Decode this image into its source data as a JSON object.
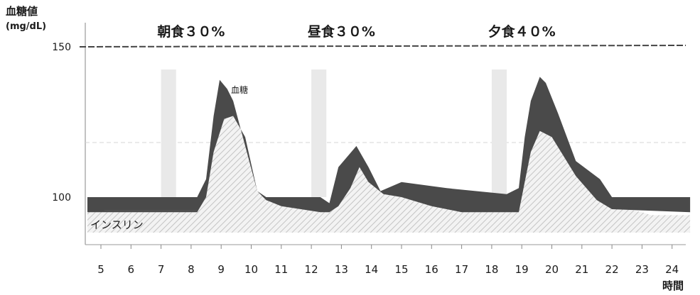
{
  "chart_data": {
    "type": "area",
    "ylabel": "血糖値",
    "yunit": "(mg/dL)",
    "xlabel": "時間",
    "x_ticks": [
      5,
      6,
      7,
      8,
      9,
      10,
      11,
      12,
      13,
      14,
      15,
      16,
      17,
      18,
      19,
      20,
      21,
      22,
      23,
      24
    ],
    "y_ticks": [
      100,
      150
    ],
    "xlim": [
      4.55,
      24.6
    ],
    "reference_line": 150,
    "meal_labels": [
      {
        "text": "朝食３０%",
        "x": 8.0
      },
      {
        "text": "昼食３０%",
        "x": 13.0
      },
      {
        "text": "夕食４０%",
        "x": 19.0
      }
    ],
    "meal_bands": [
      [
        7.0,
        7.5
      ],
      [
        12.0,
        12.5
      ],
      [
        18.0,
        18.5
      ]
    ],
    "series_labels": {
      "blood_sugar": "血糖",
      "insulin": "インスリン"
    },
    "series": [
      {
        "name": "血糖",
        "color": "#4a4a4a",
        "upper": [
          [
            4.55,
            100
          ],
          [
            8.2,
            100
          ],
          [
            8.5,
            106
          ],
          [
            8.75,
            127
          ],
          [
            8.95,
            139
          ],
          [
            9.2,
            136
          ],
          [
            9.4,
            132
          ],
          [
            10.2,
            102
          ],
          [
            10.5,
            100
          ],
          [
            12.3,
            100
          ],
          [
            12.6,
            98
          ],
          [
            12.9,
            110
          ],
          [
            13.5,
            117
          ],
          [
            13.9,
            110
          ],
          [
            14.3,
            102
          ],
          [
            15.0,
            105
          ],
          [
            16.5,
            103
          ],
          [
            18.5,
            101
          ],
          [
            18.9,
            103
          ],
          [
            19.1,
            120
          ],
          [
            19.3,
            132
          ],
          [
            19.6,
            140
          ],
          [
            19.8,
            138
          ],
          [
            20.2,
            128
          ],
          [
            20.8,
            112
          ],
          [
            21.6,
            106
          ],
          [
            22.0,
            100
          ],
          [
            24.6,
            100
          ]
        ],
        "lower": [
          [
            4.55,
            95
          ],
          [
            8.2,
            95
          ],
          [
            8.5,
            100
          ],
          [
            8.75,
            115
          ],
          [
            9.1,
            126
          ],
          [
            9.4,
            127
          ],
          [
            9.8,
            120
          ],
          [
            10.2,
            102
          ],
          [
            10.5,
            99
          ],
          [
            11.0,
            97
          ],
          [
            12.3,
            95
          ],
          [
            12.6,
            95
          ],
          [
            12.9,
            97
          ],
          [
            13.3,
            103
          ],
          [
            13.6,
            110
          ],
          [
            13.9,
            105
          ],
          [
            14.4,
            101
          ],
          [
            15.0,
            100
          ],
          [
            16.0,
            97
          ],
          [
            17.0,
            95
          ],
          [
            18.5,
            95
          ],
          [
            18.9,
            95
          ],
          [
            19.1,
            105
          ],
          [
            19.3,
            115
          ],
          [
            19.6,
            122
          ],
          [
            20.0,
            120
          ],
          [
            20.8,
            107
          ],
          [
            21.5,
            99
          ],
          [
            22.0,
            96
          ],
          [
            24.6,
            95
          ]
        ]
      },
      {
        "name": "インスリン",
        "hatch_color": "#bdbdbd",
        "values": [
          [
            4.55,
            95
          ],
          [
            8.2,
            95
          ],
          [
            8.5,
            100
          ],
          [
            8.75,
            115
          ],
          [
            9.1,
            126
          ],
          [
            9.4,
            127
          ],
          [
            9.8,
            120
          ],
          [
            10.2,
            102
          ],
          [
            10.5,
            99
          ],
          [
            11.0,
            97
          ],
          [
            12.3,
            95
          ],
          [
            12.6,
            95
          ],
          [
            12.9,
            97
          ],
          [
            13.3,
            103
          ],
          [
            13.6,
            110
          ],
          [
            13.9,
            105
          ],
          [
            14.4,
            101
          ],
          [
            15.0,
            100
          ],
          [
            16.0,
            97
          ],
          [
            17.0,
            95
          ],
          [
            18.5,
            95
          ],
          [
            18.9,
            95
          ],
          [
            19.1,
            105
          ],
          [
            19.3,
            115
          ],
          [
            19.6,
            122
          ],
          [
            20.0,
            120
          ],
          [
            20.8,
            107
          ],
          [
            21.5,
            99
          ],
          [
            22.0,
            97
          ],
          [
            23.0,
            95
          ],
          [
            23.3,
            94
          ],
          [
            24.6,
            94
          ]
        ]
      }
    ]
  }
}
